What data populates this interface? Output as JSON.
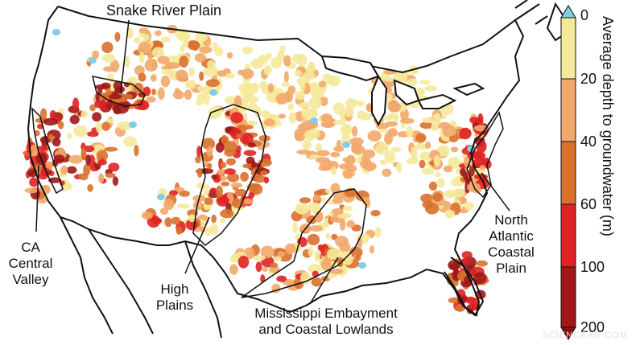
{
  "map": {
    "labels": {
      "snake_river": "Snake River Plain",
      "ca_valley": [
        "CA",
        "Central",
        "Valley"
      ],
      "high_plains": [
        "High",
        "Plains"
      ],
      "mississippi": [
        "Mississippi Embayment",
        "and Coastal Lowlands"
      ],
      "north_atlantic": [
        "North",
        "Atlantic",
        "Coastal",
        "Plain"
      ]
    },
    "credit": "SCIENCEAG.COM"
  },
  "legend": {
    "title": "Average depth to groundwater (m)",
    "ticks": [
      "0",
      "20",
      "40",
      "60",
      "100",
      "200"
    ],
    "colors": [
      "#f5e99a",
      "#f2a86b",
      "#d9712e",
      "#e02222",
      "#a01818"
    ],
    "over_color": "#80cde6",
    "under_color": "#8a1010"
  },
  "colors": {
    "land": "#ffffff",
    "boundary": "#111111",
    "lake": "#ffffff"
  }
}
